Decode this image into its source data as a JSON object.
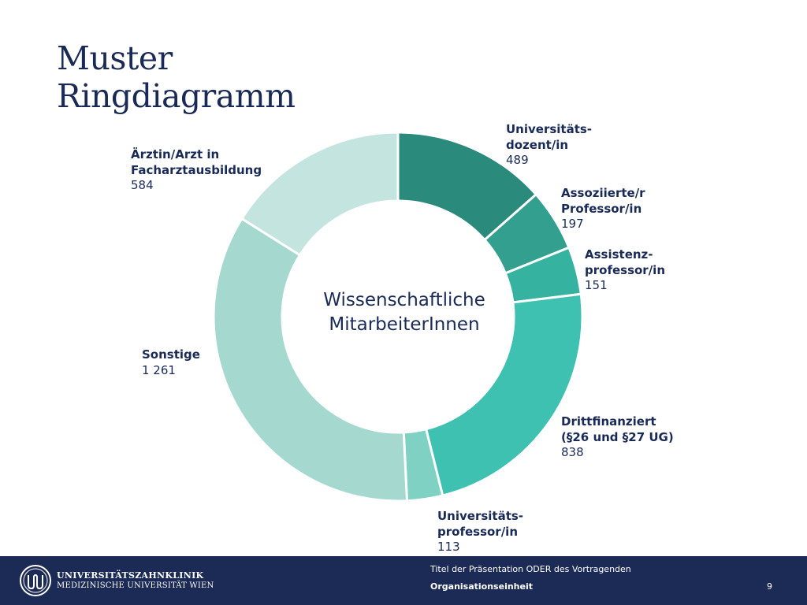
{
  "slide": {
    "title_lines": [
      "Muster",
      "Ringdiagramm"
    ]
  },
  "chart_data": {
    "type": "pie",
    "center_label_lines": [
      "Wissenschaftliche",
      "MitarbeiterInnen"
    ],
    "slices": [
      {
        "label": "Universitäts-\ndozent/in",
        "value": 489,
        "value_text": "489",
        "color": "#2a8a7c"
      },
      {
        "label": "Assoziierte/r\nProfessor/in",
        "value": 197,
        "value_text": "197",
        "color": "#33a08f"
      },
      {
        "label": "Assistenz-\nprofessor/in",
        "value": 151,
        "value_text": "151",
        "color": "#35b2a0"
      },
      {
        "label": "Drittfinanziert\n(§26 und §27 UG)",
        "value": 838,
        "value_text": "838",
        "color": "#3ec1b0"
      },
      {
        "label": "Universitäts-\nprofessor/in",
        "value": 113,
        "value_text": "113",
        "color": "#7fd1c3"
      },
      {
        "label": "Sonstige",
        "value": 1261,
        "value_text": "1 261",
        "color": "#a5d9d0"
      },
      {
        "label": "Ärztin/Arzt in\nFacharztausbildung",
        "value": 584,
        "value_text": "584",
        "color": "#c3e4df"
      }
    ]
  },
  "footer": {
    "logo_line1": "UNIVERSITÄTSZAHNKLINIK",
    "logo_line2": "MEDIZINISCHE UNIVERSITÄT WIEN",
    "presentation_title": "Titel der Präsentation ODER des Vortragenden",
    "unit": "Organisationseinheit",
    "page_number": "9"
  }
}
